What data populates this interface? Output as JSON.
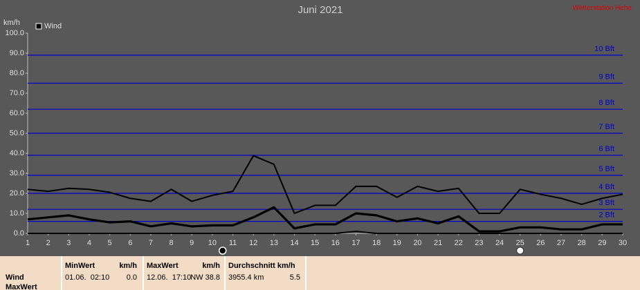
{
  "chart_data": {
    "type": "line",
    "title": "Juni 2021",
    "station": "Wetterstation Hehe",
    "y_label": "km/h",
    "x": [
      1,
      2,
      3,
      4,
      5,
      6,
      7,
      8,
      9,
      10,
      11,
      12,
      13,
      14,
      15,
      16,
      17,
      18,
      19,
      20,
      21,
      22,
      23,
      24,
      25,
      26,
      27,
      28,
      29,
      30
    ],
    "xlim": [
      1,
      30
    ],
    "xticks": [
      1,
      2,
      3,
      4,
      5,
      6,
      7,
      8,
      9,
      10,
      11,
      12,
      13,
      14,
      15,
      16,
      17,
      18,
      19,
      20,
      21,
      22,
      23,
      24,
      25,
      26,
      27,
      28,
      29,
      30
    ],
    "ylim": [
      0,
      100
    ],
    "yticks": [
      {
        "value": 0,
        "label": "0.0"
      },
      {
        "value": 10,
        "label": "10.0"
      },
      {
        "value": 20,
        "label": "20.0"
      },
      {
        "value": 30,
        "label": "30.0"
      },
      {
        "value": 40,
        "label": "40.0"
      },
      {
        "value": 50,
        "label": "50.0"
      },
      {
        "value": 60,
        "label": "60.0"
      },
      {
        "value": 70,
        "label": "70.0"
      },
      {
        "value": 80,
        "label": "80.0"
      },
      {
        "value": 90,
        "label": "90.0"
      },
      {
        "value": 100,
        "label": "100.0"
      }
    ],
    "series": [
      {
        "name": "Wind",
        "color": "#000000",
        "values": [
          7,
          8,
          9,
          7,
          5.5,
          6,
          3.5,
          5,
          3.5,
          4,
          4,
          8,
          13,
          2.5,
          4.5,
          4.5,
          10,
          9,
          6,
          7.5,
          5,
          8.5,
          1,
          1,
          3,
          3,
          2,
          2,
          4.5,
          4.5
        ],
        "max": [
          22,
          21,
          22.5,
          22,
          20.5,
          17.5,
          16,
          22,
          16,
          19,
          21,
          38.8,
          34.5,
          10,
          14,
          14,
          23.5,
          23.5,
          18,
          23.5,
          21,
          22.5,
          10,
          10,
          22,
          19.5,
          17.5,
          14.5,
          17.5,
          19.5
        ],
        "min": [
          0,
          0,
          0,
          0,
          0,
          0,
          0,
          0,
          0,
          0,
          0,
          0,
          0,
          0,
          0,
          0,
          1,
          0,
          0,
          0,
          0,
          0,
          0,
          0,
          0,
          0,
          0,
          0,
          0,
          0
        ]
      }
    ],
    "beaufort_color": "#0000cc",
    "beaufort": [
      {
        "value": 6,
        "label": "2 Bft"
      },
      {
        "value": 12,
        "label": "3 Bft"
      },
      {
        "value": 20,
        "label": "4 Bft"
      },
      {
        "value": 29,
        "label": "5 Bft"
      },
      {
        "value": 39,
        "label": "6 Bft"
      },
      {
        "value": 50,
        "label": "7 Bft"
      },
      {
        "value": 62,
        "label": "8 Bft"
      },
      {
        "value": 75,
        "label": "9 Bft"
      },
      {
        "value": 89,
        "label": "10 Bft"
      }
    ],
    "new_moon": 10.5,
    "full_moon": 25
  },
  "table": {
    "headers": [
      [
        "MinWert",
        "km/h"
      ],
      [
        "MaxWert",
        "km/h"
      ],
      [
        "Durchschnitt km/h"
      ]
    ],
    "rows": [
      {
        "label": "Wind",
        "cells": [
          [
            "01.06.  02:10",
            "0.0"
          ],
          [
            "12.06.  17:10",
            "NW 38.8"
          ],
          [
            "3955.4 km",
            "5.5"
          ]
        ]
      },
      {
        "label": "MaxWert"
      }
    ]
  }
}
